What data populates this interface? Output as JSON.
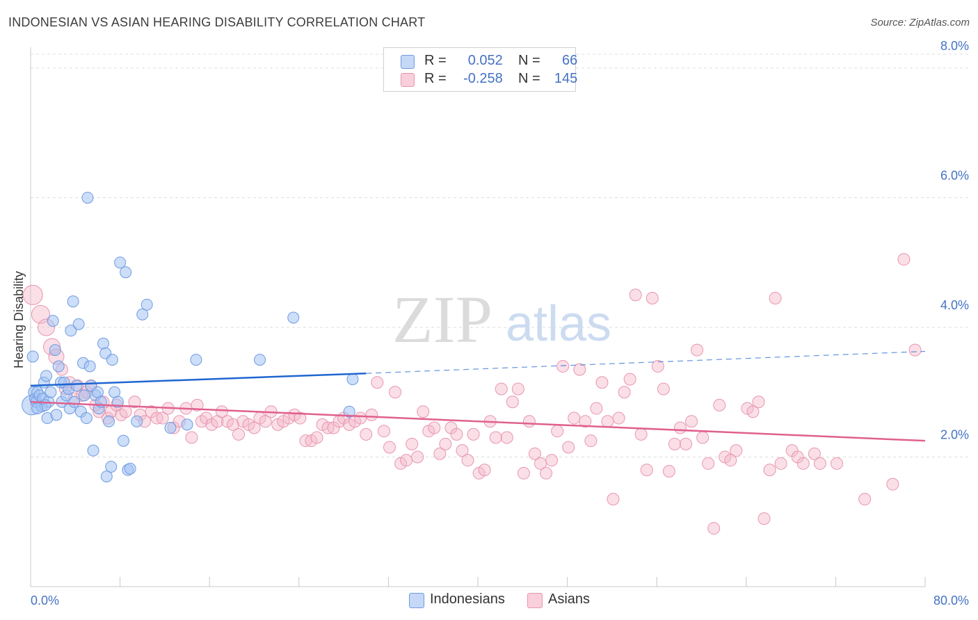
{
  "header": {
    "title": "INDONESIAN VS ASIAN HEARING DISABILITY CORRELATION CHART",
    "source": "Source: ZipAtlas.com"
  },
  "watermark": {
    "zip": "ZIP",
    "atlas": "atlas"
  },
  "legend": {
    "rows": [
      {
        "r_label": "R =",
        "r_value": "0.052",
        "n_label": "N =",
        "n_value": "66",
        "color": "#a4c2f4"
      },
      {
        "r_label": "R =",
        "r_value": "-0.258",
        "n_label": "N =",
        "n_value": "145",
        "color": "#f4b8c9"
      }
    ]
  },
  "bottom_legend": {
    "items": [
      "Indonesians",
      "Asians"
    ]
  },
  "colors": {
    "indonesians_fill": "#a4c2f4",
    "indonesians_stroke": "#6d9be0",
    "indonesians_line": "#1f66d1",
    "asians_fill": "#f4b8c9",
    "asians_stroke": "#e896b0",
    "asians_line": "#e0608e",
    "tick_label": "#4472c4",
    "grid": "#dddddd"
  },
  "chart_data": {
    "type": "scatter",
    "title": "INDONESIAN VS ASIAN HEARING DISABILITY CORRELATION CHART",
    "xlabel": "",
    "ylabel": "Hearing Disability",
    "xlim": [
      0,
      80
    ],
    "ylim": [
      0,
      8.3
    ],
    "x_tick_labels": [
      "0.0%",
      "80.0%"
    ],
    "y_ticks": [
      2,
      4,
      6,
      8
    ],
    "y_tick_labels": [
      "2.0%",
      "4.0%",
      "6.0%",
      "8.0%"
    ],
    "grid": "horizontal dashed",
    "legend_position": "top-center",
    "series": [
      {
        "name": "Indonesians",
        "r": 0.052,
        "n": 66,
        "trend": {
          "x": [
            0,
            30
          ],
          "y": [
            3.1,
            3.29
          ],
          "dashed_extension_to_x": 80,
          "y_at_80": 3.63
        },
        "points": [
          [
            0.1,
            2.8
          ],
          [
            0.3,
            3.0
          ],
          [
            0.4,
            2.9
          ],
          [
            0.5,
            2.85
          ],
          [
            0.6,
            3.0
          ],
          [
            0.8,
            2.95
          ],
          [
            1.0,
            2.78
          ],
          [
            1.1,
            2.9
          ],
          [
            1.2,
            3.15
          ],
          [
            1.4,
            3.25
          ],
          [
            1.5,
            2.6
          ],
          [
            1.6,
            2.85
          ],
          [
            1.8,
            3.0
          ],
          [
            2.0,
            4.1
          ],
          [
            2.2,
            3.65
          ],
          [
            2.3,
            2.65
          ],
          [
            2.5,
            3.4
          ],
          [
            2.7,
            3.15
          ],
          [
            2.8,
            2.85
          ],
          [
            3.0,
            3.15
          ],
          [
            3.2,
            2.95
          ],
          [
            3.4,
            3.05
          ],
          [
            3.5,
            2.75
          ],
          [
            3.6,
            3.95
          ],
          [
            3.8,
            4.4
          ],
          [
            3.9,
            2.85
          ],
          [
            4.1,
            3.1
          ],
          [
            4.3,
            4.05
          ],
          [
            4.5,
            2.7
          ],
          [
            4.7,
            3.45
          ],
          [
            4.8,
            2.95
          ],
          [
            5.0,
            2.6
          ],
          [
            5.1,
            6.0
          ],
          [
            5.3,
            3.4
          ],
          [
            5.4,
            3.1
          ],
          [
            5.6,
            2.1
          ],
          [
            5.8,
            2.95
          ],
          [
            6.0,
            3.0
          ],
          [
            6.1,
            2.75
          ],
          [
            6.3,
            2.85
          ],
          [
            6.5,
            3.75
          ],
          [
            6.7,
            3.6
          ],
          [
            6.8,
            1.7
          ],
          [
            7.0,
            2.55
          ],
          [
            7.2,
            1.85
          ],
          [
            7.3,
            3.5
          ],
          [
            7.5,
            3.0
          ],
          [
            7.8,
            2.85
          ],
          [
            8.0,
            5.0
          ],
          [
            8.3,
            2.25
          ],
          [
            8.5,
            4.85
          ],
          [
            8.7,
            1.8
          ],
          [
            8.9,
            1.82
          ],
          [
            9.5,
            2.55
          ],
          [
            10.0,
            4.2
          ],
          [
            10.4,
            4.35
          ],
          [
            12.5,
            2.45
          ],
          [
            14.0,
            2.5
          ],
          [
            14.8,
            3.5
          ],
          [
            20.5,
            3.5
          ],
          [
            23.5,
            4.15
          ],
          [
            28.5,
            2.7
          ],
          [
            28.8,
            3.2
          ],
          [
            0.2,
            3.55
          ],
          [
            1.3,
            2.8
          ],
          [
            0.6,
            2.75
          ]
        ]
      },
      {
        "name": "Asians",
        "r": -0.258,
        "n": 145,
        "trend": {
          "x": [
            0,
            80
          ],
          "y": [
            2.85,
            2.25
          ]
        },
        "points": [
          [
            0.2,
            4.5
          ],
          [
            0.9,
            4.2
          ],
          [
            1.4,
            4.0
          ],
          [
            1.9,
            3.7
          ],
          [
            2.3,
            3.55
          ],
          [
            2.8,
            3.35
          ],
          [
            3.1,
            3.05
          ],
          [
            3.5,
            3.15
          ],
          [
            3.9,
            2.9
          ],
          [
            4.2,
            3.1
          ],
          [
            4.6,
            2.95
          ],
          [
            5.0,
            3.0
          ],
          [
            5.4,
            3.1
          ],
          [
            5.8,
            2.8
          ],
          [
            6.1,
            2.7
          ],
          [
            6.5,
            2.85
          ],
          [
            6.9,
            2.6
          ],
          [
            7.2,
            2.7
          ],
          [
            7.7,
            2.8
          ],
          [
            8.1,
            2.65
          ],
          [
            8.5,
            2.7
          ],
          [
            9.3,
            2.85
          ],
          [
            9.8,
            2.65
          ],
          [
            10.2,
            2.55
          ],
          [
            10.8,
            2.7
          ],
          [
            11.3,
            2.6
          ],
          [
            11.8,
            2.6
          ],
          [
            12.3,
            2.75
          ],
          [
            12.8,
            2.45
          ],
          [
            13.3,
            2.55
          ],
          [
            13.9,
            2.75
          ],
          [
            14.4,
            2.3
          ],
          [
            14.9,
            2.8
          ],
          [
            15.3,
            2.55
          ],
          [
            15.7,
            2.6
          ],
          [
            16.2,
            2.5
          ],
          [
            16.7,
            2.55
          ],
          [
            17.1,
            2.7
          ],
          [
            17.6,
            2.55
          ],
          [
            18.1,
            2.5
          ],
          [
            18.6,
            2.35
          ],
          [
            19.0,
            2.55
          ],
          [
            19.5,
            2.5
          ],
          [
            20.0,
            2.45
          ],
          [
            20.5,
            2.6
          ],
          [
            21.0,
            2.55
          ],
          [
            21.5,
            2.7
          ],
          [
            22.1,
            2.5
          ],
          [
            22.6,
            2.55
          ],
          [
            23.1,
            2.6
          ],
          [
            23.6,
            2.65
          ],
          [
            24.1,
            2.6
          ],
          [
            24.6,
            2.25
          ],
          [
            25.1,
            2.25
          ],
          [
            25.6,
            2.3
          ],
          [
            26.1,
            2.5
          ],
          [
            26.6,
            2.45
          ],
          [
            27.1,
            2.45
          ],
          [
            27.6,
            2.55
          ],
          [
            28.0,
            2.6
          ],
          [
            28.5,
            2.5
          ],
          [
            29.0,
            2.55
          ],
          [
            29.5,
            2.6
          ],
          [
            30.0,
            2.35
          ],
          [
            30.5,
            2.65
          ],
          [
            31.0,
            3.15
          ],
          [
            31.6,
            2.4
          ],
          [
            32.1,
            2.15
          ],
          [
            32.6,
            3.0
          ],
          [
            33.1,
            1.9
          ],
          [
            33.6,
            1.95
          ],
          [
            34.1,
            2.2
          ],
          [
            34.6,
            2.0
          ],
          [
            35.1,
            2.7
          ],
          [
            35.6,
            2.4
          ],
          [
            36.1,
            2.45
          ],
          [
            36.6,
            2.05
          ],
          [
            37.1,
            2.2
          ],
          [
            37.6,
            2.45
          ],
          [
            38.1,
            2.35
          ],
          [
            38.6,
            2.1
          ],
          [
            39.1,
            1.95
          ],
          [
            39.6,
            2.35
          ],
          [
            40.1,
            1.75
          ],
          [
            40.6,
            1.8
          ],
          [
            41.1,
            2.55
          ],
          [
            41.6,
            2.3
          ],
          [
            42.1,
            3.05
          ],
          [
            42.6,
            2.3
          ],
          [
            43.1,
            2.85
          ],
          [
            43.6,
            3.05
          ],
          [
            44.1,
            1.75
          ],
          [
            44.6,
            2.55
          ],
          [
            45.1,
            2.05
          ],
          [
            45.6,
            1.9
          ],
          [
            46.1,
            1.75
          ],
          [
            46.6,
            1.95
          ],
          [
            47.1,
            2.4
          ],
          [
            47.6,
            3.4
          ],
          [
            48.1,
            2.15
          ],
          [
            48.6,
            2.6
          ],
          [
            49.1,
            3.35
          ],
          [
            49.6,
            2.55
          ],
          [
            50.1,
            2.25
          ],
          [
            50.6,
            2.75
          ],
          [
            51.1,
            3.15
          ],
          [
            51.6,
            2.55
          ],
          [
            52.1,
            1.35
          ],
          [
            52.6,
            2.6
          ],
          [
            53.1,
            3.0
          ],
          [
            53.6,
            3.2
          ],
          [
            54.1,
            4.5
          ],
          [
            54.6,
            2.35
          ],
          [
            55.1,
            1.8
          ],
          [
            55.6,
            4.45
          ],
          [
            56.1,
            3.4
          ],
          [
            56.6,
            3.05
          ],
          [
            57.1,
            1.78
          ],
          [
            57.6,
            2.2
          ],
          [
            58.1,
            2.45
          ],
          [
            58.6,
            2.2
          ],
          [
            59.1,
            2.55
          ],
          [
            59.6,
            3.65
          ],
          [
            60.1,
            2.3
          ],
          [
            60.6,
            1.9
          ],
          [
            61.1,
            0.9
          ],
          [
            61.6,
            2.8
          ],
          [
            62.1,
            2.0
          ],
          [
            62.6,
            1.95
          ],
          [
            63.1,
            2.1
          ],
          [
            64.1,
            2.75
          ],
          [
            64.6,
            2.7
          ],
          [
            65.1,
            2.85
          ],
          [
            65.6,
            1.05
          ],
          [
            66.1,
            1.8
          ],
          [
            66.6,
            4.45
          ],
          [
            67.1,
            1.9
          ],
          [
            68.1,
            2.1
          ],
          [
            68.6,
            2.0
          ],
          [
            69.1,
            1.9
          ],
          [
            70.1,
            2.05
          ],
          [
            70.6,
            1.9
          ],
          [
            72.1,
            1.9
          ],
          [
            74.6,
            1.35
          ],
          [
            77.1,
            1.58
          ],
          [
            78.1,
            5.05
          ],
          [
            79.1,
            3.65
          ]
        ]
      }
    ]
  }
}
